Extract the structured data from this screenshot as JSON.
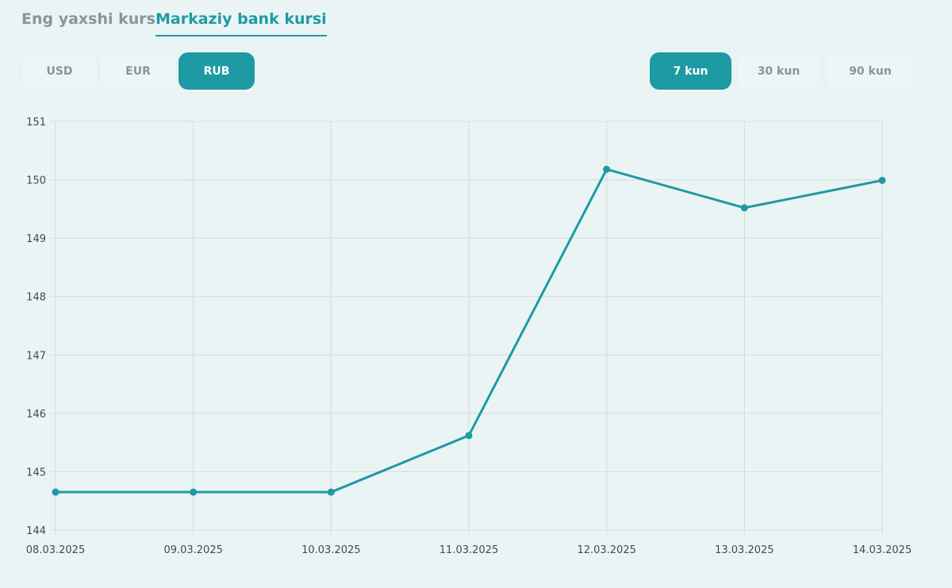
{
  "tabs": {
    "best_rate": "Eng yaxshi kurs",
    "central_bank": "Markaziy bank kursi"
  },
  "currencies": [
    {
      "label": "USD",
      "active": false
    },
    {
      "label": "EUR",
      "active": false
    },
    {
      "label": "RUB",
      "active": true
    }
  ],
  "periods": [
    {
      "label": "7 kun",
      "active": true
    },
    {
      "label": "30 kun",
      "active": false
    },
    {
      "label": "90 kun",
      "active": false
    }
  ],
  "colors": {
    "accent": "#1e9aa4",
    "background": "#eaf4f5",
    "grid": "#d3dbdd",
    "muted_text": "#8c9396"
  },
  "chart_data": {
    "type": "line",
    "x": [
      "08.03.2025",
      "09.03.2025",
      "10.03.2025",
      "11.03.2025",
      "12.03.2025",
      "13.03.2025",
      "14.03.2025"
    ],
    "series": [
      {
        "values": [
          144.65,
          144.65,
          144.65,
          145.62,
          150.18,
          149.52,
          149.99
        ]
      }
    ],
    "yticks": [
      "144",
      "145",
      "146",
      "147",
      "148",
      "149",
      "150",
      "151"
    ],
    "ylim": [
      144,
      151
    ],
    "grid": true,
    "title": "",
    "xlabel": "",
    "ylabel": ""
  }
}
